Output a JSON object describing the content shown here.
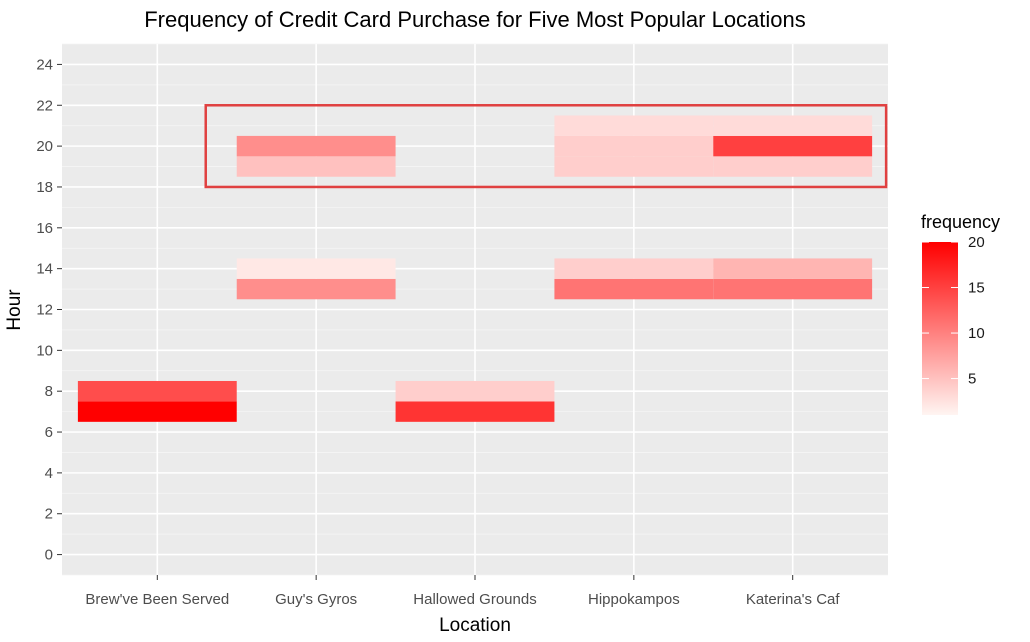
{
  "chart_data": {
    "type": "heatmap",
    "title": "Frequency of Credit Card Purchase for Five Most Popular Locations",
    "xlabel": "Location",
    "ylabel": "Hour",
    "categories": [
      "Brew've Been Served",
      "Guy's Gyros",
      "Hallowed Grounds",
      "Hippokampos",
      "Katerina's Caf"
    ],
    "ylim": [
      -1,
      25
    ],
    "yticks": [
      0,
      2,
      4,
      6,
      8,
      10,
      12,
      14,
      16,
      18,
      20,
      22,
      24
    ],
    "grid": true,
    "legend": {
      "title": "frequency",
      "position": "right",
      "min": 1,
      "max": 20,
      "ticks": [
        5,
        10,
        15,
        20
      ],
      "low_color": "#FFF5F2",
      "high_color": "#FF0000"
    },
    "cells": [
      {
        "location": "Brew've Been Served",
        "hour": 7,
        "value": 20
      },
      {
        "location": "Brew've Been Served",
        "hour": 8,
        "value": 14
      },
      {
        "location": "Guy's Gyros",
        "hour": 13,
        "value": 9
      },
      {
        "location": "Guy's Gyros",
        "hour": 14,
        "value": 2
      },
      {
        "location": "Guy's Gyros",
        "hour": 19,
        "value": 5
      },
      {
        "location": "Guy's Gyros",
        "hour": 20,
        "value": 9
      },
      {
        "location": "Hallowed Grounds",
        "hour": 7,
        "value": 16
      },
      {
        "location": "Hallowed Grounds",
        "hour": 8,
        "value": 4
      },
      {
        "location": "Hippokampos",
        "hour": 13,
        "value": 11
      },
      {
        "location": "Hippokampos",
        "hour": 14,
        "value": 4
      },
      {
        "location": "Hippokampos",
        "hour": 19,
        "value": 4
      },
      {
        "location": "Hippokampos",
        "hour": 20,
        "value": 4
      },
      {
        "location": "Hippokampos",
        "hour": 21,
        "value": 3
      },
      {
        "location": "Katerina's Caf",
        "hour": 13,
        "value": 11
      },
      {
        "location": "Katerina's Caf",
        "hour": 14,
        "value": 6
      },
      {
        "location": "Katerina's Caf",
        "hour": 19,
        "value": 4
      },
      {
        "location": "Katerina's Caf",
        "hour": 20,
        "value": 15
      },
      {
        "location": "Katerina's Caf",
        "hour": 21,
        "value": 3
      }
    ],
    "highlight": {
      "hours": [
        18,
        22
      ],
      "color": "#e04040"
    }
  }
}
